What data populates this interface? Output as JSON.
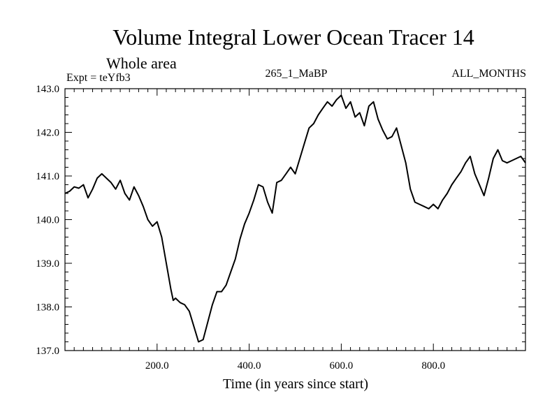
{
  "chart_data": {
    "type": "line",
    "title": "Volume Integral Lower Ocean Tracer 14",
    "subtitle": "Whole area",
    "expt_label": "Expt = teYfb3",
    "center_label": "265_1_MaBP",
    "right_label": "ALL_MONTHS",
    "xlabel": "Time (in years since start)",
    "ylabel": "",
    "xlim": [
      0,
      1000
    ],
    "ylim": [
      137.0,
      143.0
    ],
    "x_ticks": [
      200,
      400,
      600,
      800
    ],
    "x_tick_labels": [
      "200.0",
      "400.0",
      "600.0",
      "800.0"
    ],
    "y_ticks": [
      137,
      138,
      139,
      140,
      141,
      142,
      143
    ],
    "y_tick_labels": [
      "137.0",
      "138.0",
      "139.0",
      "140.0",
      "141.0",
      "142.0",
      "143.0"
    ],
    "series": [
      {
        "name": "Volume Integral Lower Ocean Tracer 14",
        "color": "#000000",
        "x": [
          0,
          10,
          20,
          30,
          40,
          50,
          60,
          70,
          80,
          90,
          100,
          110,
          120,
          130,
          140,
          150,
          160,
          170,
          180,
          190,
          200,
          210,
          220,
          230,
          235,
          240,
          250,
          260,
          270,
          280,
          290,
          300,
          310,
          320,
          330,
          340,
          350,
          360,
          370,
          380,
          390,
          400,
          410,
          420,
          430,
          440,
          450,
          460,
          470,
          480,
          490,
          500,
          510,
          520,
          530,
          540,
          550,
          560,
          570,
          580,
          590,
          600,
          610,
          620,
          630,
          640,
          650,
          660,
          670,
          680,
          690,
          700,
          710,
          720,
          730,
          740,
          750,
          760,
          770,
          780,
          790,
          800,
          810,
          820,
          830,
          840,
          850,
          860,
          870,
          880,
          890,
          900,
          910,
          920,
          930,
          940,
          950,
          960,
          970,
          980,
          990,
          1000
        ],
        "values": [
          140.6,
          140.65,
          140.75,
          140.72,
          140.8,
          140.5,
          140.7,
          140.95,
          141.05,
          140.95,
          140.85,
          140.7,
          140.9,
          140.6,
          140.45,
          140.75,
          140.55,
          140.3,
          140.0,
          139.85,
          139.95,
          139.6,
          139.0,
          138.4,
          138.15,
          138.2,
          138.1,
          138.05,
          137.9,
          137.55,
          137.2,
          137.25,
          137.65,
          138.05,
          138.35,
          138.35,
          138.5,
          138.8,
          139.1,
          139.55,
          139.9,
          140.15,
          140.45,
          140.8,
          140.75,
          140.4,
          140.15,
          140.85,
          140.9,
          141.05,
          141.2,
          141.05,
          141.4,
          141.75,
          142.1,
          142.2,
          142.4,
          142.55,
          142.7,
          142.6,
          142.75,
          142.85,
          142.55,
          142.7,
          142.35,
          142.45,
          142.15,
          142.6,
          142.7,
          142.3,
          142.05,
          141.85,
          141.9,
          142.1,
          141.7,
          141.3,
          140.7,
          140.4,
          140.35,
          140.3,
          140.25,
          140.35,
          140.25,
          140.45,
          140.6,
          140.8,
          140.95,
          141.1,
          141.3,
          141.45,
          141.05,
          140.8,
          140.55,
          140.95,
          141.4,
          141.6,
          141.35,
          141.3,
          141.35,
          141.4,
          141.45,
          141.3
        ]
      }
    ]
  }
}
